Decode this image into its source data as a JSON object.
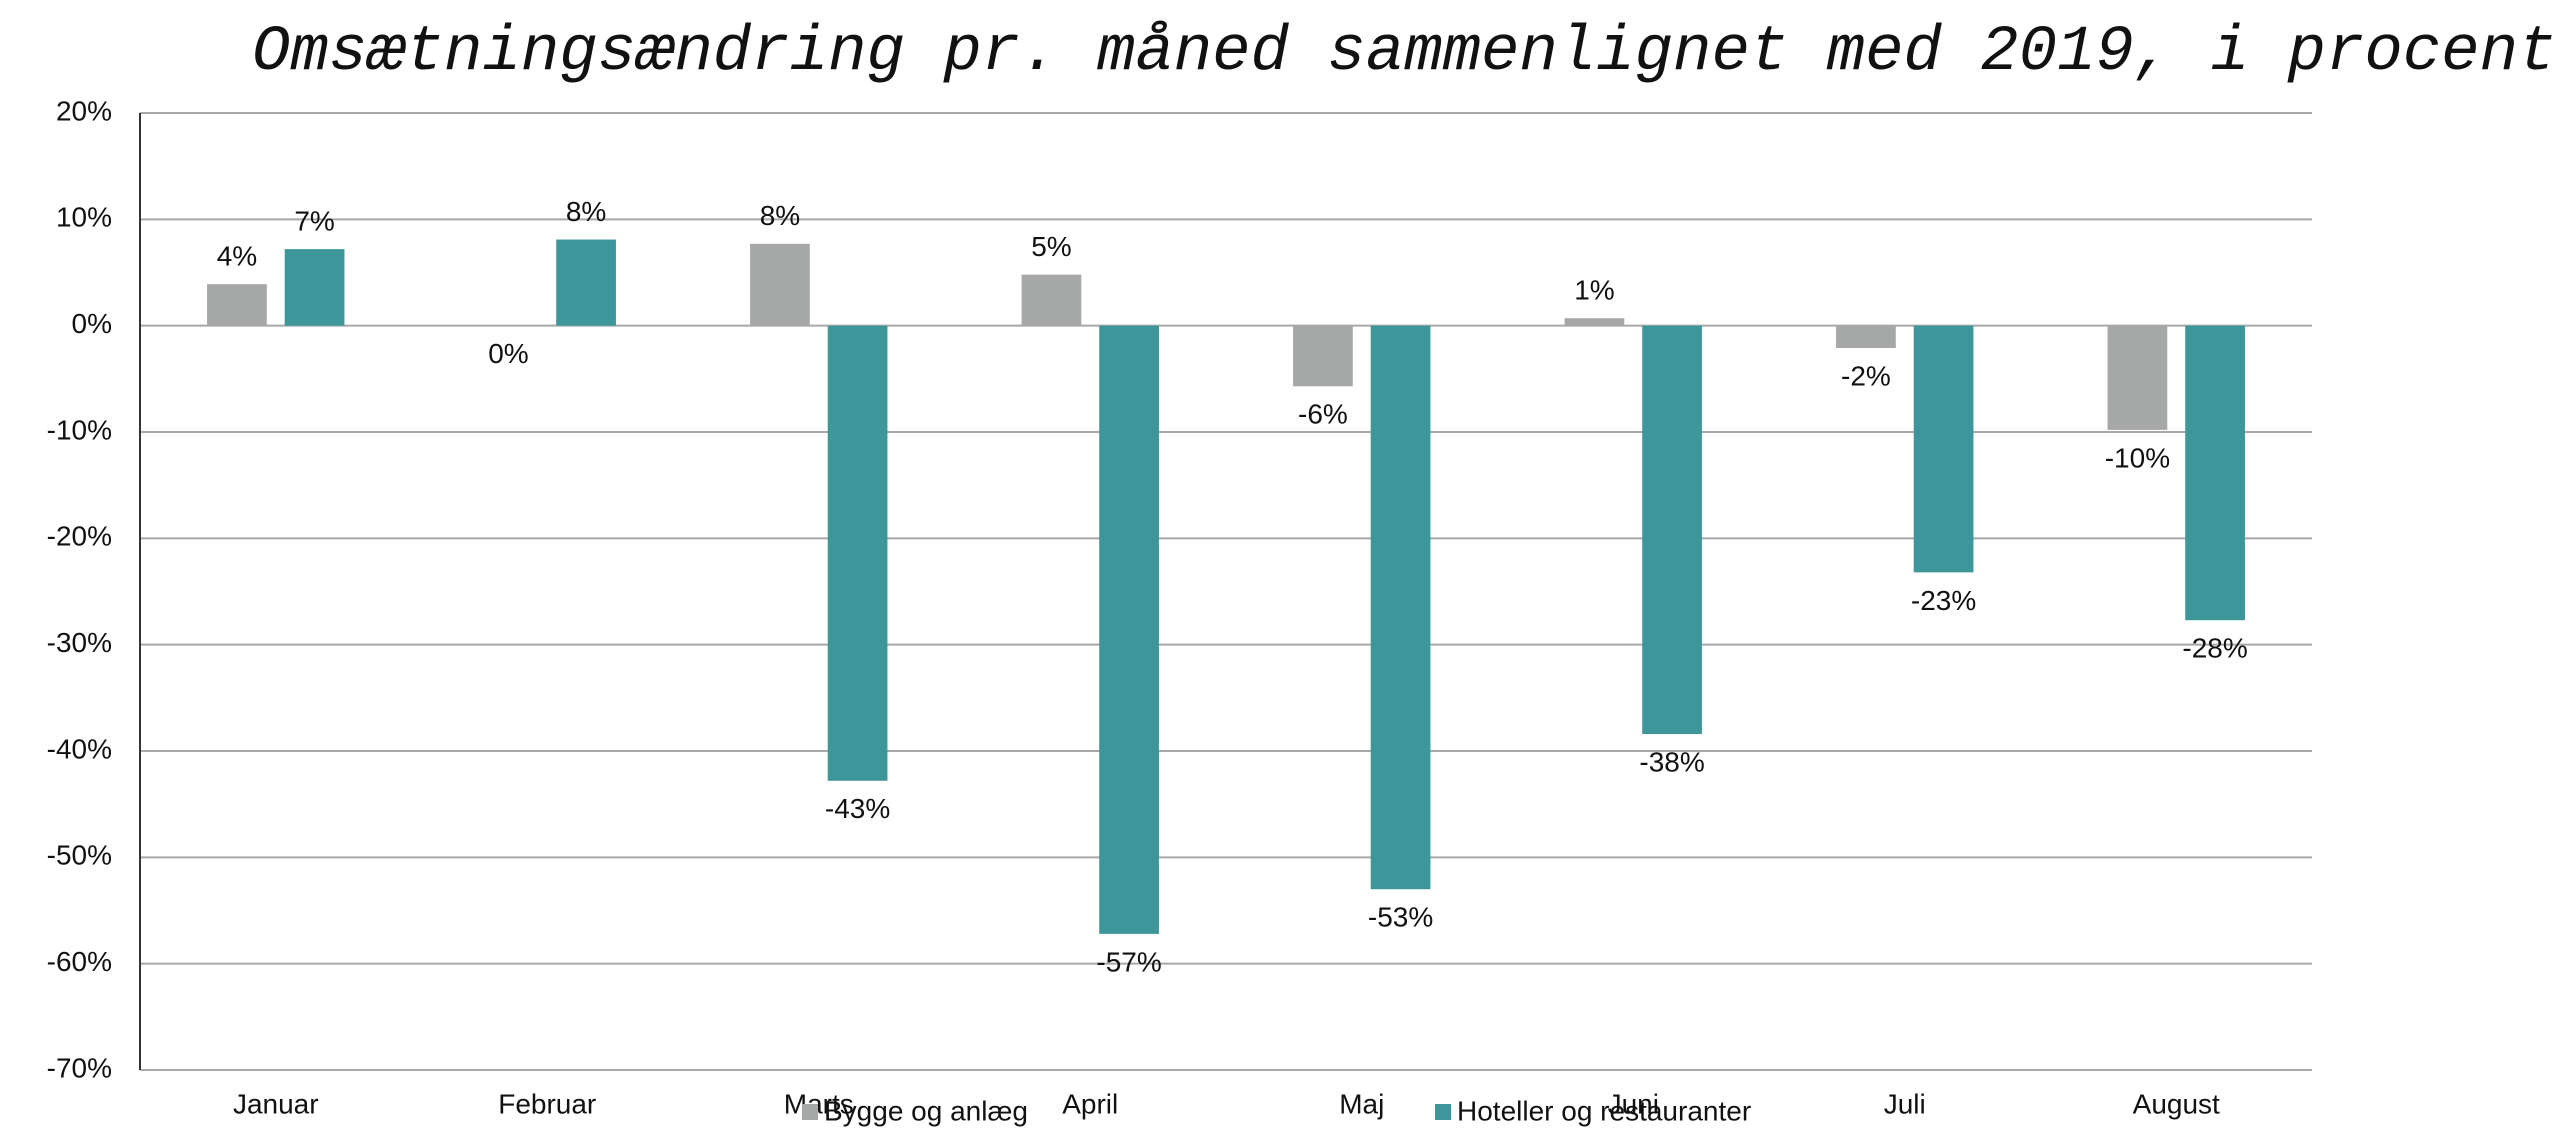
{
  "chart_data": {
    "type": "bar",
    "title": "Omsætningsændring pr. måned sammenlignet med 2019, i procent",
    "categories": [
      "Januar",
      "Februar",
      "Marts",
      "April",
      "Maj",
      "Juni",
      "Juli",
      "August"
    ],
    "series": [
      {
        "name": "Bygge og anlæg",
        "color": "#a6a8a7",
        "values": [
          3.9,
          0,
          7.7,
          4.8,
          -5.7,
          0.7,
          -2.1,
          -9.8
        ],
        "value_labels": [
          "4%",
          "0%",
          "8%",
          "5%",
          "-6%",
          "1%",
          "-2%",
          "-10%"
        ]
      },
      {
        "name": "Hoteller og restauranter",
        "color": "#3d9699",
        "values": [
          7.2,
          8.1,
          -42.8,
          -57.2,
          -53.0,
          -38.4,
          -23.2,
          -27.7
        ],
        "value_labels": [
          "7%",
          "8%",
          "-43%",
          "-57%",
          "-53%",
          "-38%",
          "-23%",
          "-28%"
        ]
      }
    ],
    "ylim": [
      -70,
      20
    ],
    "yticks": [
      {
        "value": -70,
        "label": "-70%"
      },
      {
        "value": -60,
        "label": "-60%"
      },
      {
        "value": -50,
        "label": "-50%"
      },
      {
        "value": -40,
        "label": "-40%"
      },
      {
        "value": -30,
        "label": "-30%"
      },
      {
        "value": -20,
        "label": "-20%"
      },
      {
        "value": -10,
        "label": "-10%"
      },
      {
        "value": 0,
        "label": "0%"
      },
      {
        "value": 10,
        "label": "10%"
      },
      {
        "value": 20,
        "label": "20%"
      }
    ],
    "grid": true,
    "legend": "bottom"
  }
}
